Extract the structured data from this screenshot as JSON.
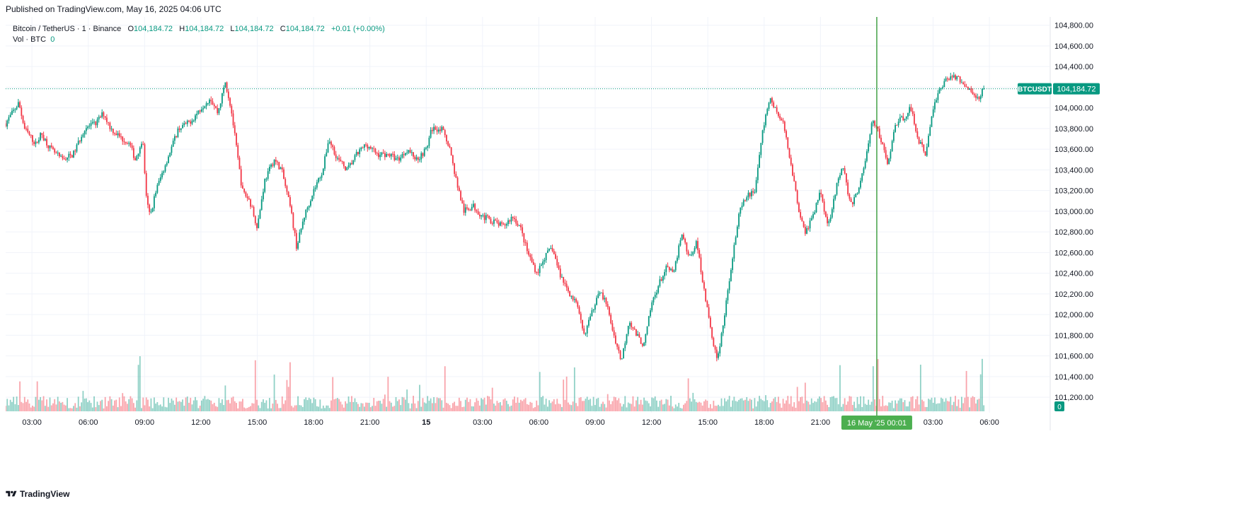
{
  "header": {
    "published": "Published on TradingView.com, May 16, 2025 04:06 UTC"
  },
  "legend": {
    "symbol": "Bitcoin / TetherUS · 1 · Binance",
    "o_label": "O",
    "o": "104,184.72",
    "h_label": "H",
    "h": "104,184.72",
    "l_label": "L",
    "l": "104,184.72",
    "c_label": "C",
    "c": "104,184.72",
    "change": "+0.01 (+0.00%)",
    "vol_label": "Vol · BTC",
    "vol_value": "0"
  },
  "price_tag": {
    "ticker": "BTCUSDT",
    "price": "104,184.72"
  },
  "volume_tag": "0",
  "crosshair_label": {
    "date": "16 May '25",
    "time": "00:01"
  },
  "footer": {
    "brand": "TradingView"
  },
  "colors": {
    "up": "#089981",
    "down": "#f23645",
    "grid": "#f0f3fa",
    "crosshair": "#22ab94",
    "crosshair_dark": "#43a047"
  },
  "chart_data": {
    "type": "candlestick",
    "symbol": "BTCUSDT",
    "interval": "1m",
    "y_axis": {
      "ticks": [
        "104,800.00",
        "104,600.00",
        "104,400.00",
        "104,200.00",
        "104,000.00",
        "103,800.00",
        "103,600.00",
        "103,400.00",
        "103,200.00",
        "103,000.00",
        "102,800.00",
        "102,600.00",
        "102,400.00",
        "102,200.00",
        "102,000.00",
        "101,800.00",
        "101,600.00",
        "101,400.00",
        "101,200.00"
      ],
      "ylim": [
        101050,
        104880
      ]
    },
    "x_axis": {
      "ticks": [
        "03:00",
        "06:00",
        "09:00",
        "12:00",
        "15:00",
        "18:00",
        "21:00",
        "15",
        "03:00",
        "06:00",
        "09:00",
        "12:00",
        "15:00",
        "18:00",
        "21:00",
        "03:00",
        "06:00"
      ],
      "tick_hours": [
        3,
        6,
        9,
        12,
        15,
        18,
        21,
        24,
        27,
        30,
        33,
        36,
        39,
        42,
        45,
        51,
        54
      ],
      "range_hours": [
        1.6,
        57.2
      ]
    },
    "last_price": 104184.72,
    "crosshair_hours": 48.0,
    "price_path": [
      [
        1.6,
        103850
      ],
      [
        2.3,
        104050
      ],
      [
        2.6,
        103800
      ],
      [
        3.2,
        103650
      ],
      [
        3.5,
        103750
      ],
      [
        4.0,
        103600
      ],
      [
        4.6,
        103500
      ],
      [
        5.2,
        103550
      ],
      [
        5.8,
        103800
      ],
      [
        6.4,
        103850
      ],
      [
        6.8,
        103950
      ],
      [
        7.2,
        103800
      ],
      [
        7.8,
        103700
      ],
      [
        8.2,
        103650
      ],
      [
        8.5,
        103500
      ],
      [
        8.9,
        103700
      ],
      [
        9.1,
        103100
      ],
      [
        9.3,
        102950
      ],
      [
        9.6,
        103200
      ],
      [
        10.2,
        103500
      ],
      [
        10.8,
        103800
      ],
      [
        11.3,
        103850
      ],
      [
        11.6,
        103900
      ],
      [
        12.0,
        104000
      ],
      [
        12.5,
        104100
      ],
      [
        12.9,
        103950
      ],
      [
        13.3,
        104250
      ],
      [
        13.6,
        104000
      ],
      [
        13.9,
        103600
      ],
      [
        14.2,
        103200
      ],
      [
        14.6,
        103100
      ],
      [
        15.0,
        102850
      ],
      [
        15.4,
        103300
      ],
      [
        15.9,
        103500
      ],
      [
        16.3,
        103400
      ],
      [
        16.8,
        103000
      ],
      [
        17.1,
        102650
      ],
      [
        17.5,
        102950
      ],
      [
        18.0,
        103200
      ],
      [
        18.5,
        103400
      ],
      [
        18.8,
        103700
      ],
      [
        19.3,
        103500
      ],
      [
        19.8,
        103400
      ],
      [
        20.3,
        103550
      ],
      [
        20.8,
        103650
      ],
      [
        21.4,
        103550
      ],
      [
        22.0,
        103550
      ],
      [
        22.5,
        103500
      ],
      [
        23.0,
        103600
      ],
      [
        23.5,
        103500
      ],
      [
        24.0,
        103600
      ],
      [
        24.3,
        103800
      ],
      [
        24.8,
        103800
      ],
      [
        25.2,
        103650
      ],
      [
        25.6,
        103300
      ],
      [
        26.0,
        103000
      ],
      [
        26.5,
        103050
      ],
      [
        27.0,
        102950
      ],
      [
        27.6,
        102900
      ],
      [
        28.1,
        102850
      ],
      [
        28.6,
        102950
      ],
      [
        29.0,
        102850
      ],
      [
        29.4,
        102600
      ],
      [
        29.9,
        102400
      ],
      [
        30.3,
        102550
      ],
      [
        30.7,
        102650
      ],
      [
        31.1,
        102400
      ],
      [
        31.5,
        102250
      ],
      [
        32.0,
        102100
      ],
      [
        32.4,
        101800
      ],
      [
        32.8,
        102000
      ],
      [
        33.2,
        102250
      ],
      [
        33.6,
        102100
      ],
      [
        34.0,
        101800
      ],
      [
        34.4,
        101550
      ],
      [
        34.8,
        101950
      ],
      [
        35.2,
        101800
      ],
      [
        35.6,
        101700
      ],
      [
        36.0,
        102100
      ],
      [
        36.4,
        102300
      ],
      [
        36.8,
        102450
      ],
      [
        37.2,
        102400
      ],
      [
        37.6,
        102800
      ],
      [
        38.0,
        102550
      ],
      [
        38.4,
        102700
      ],
      [
        38.8,
        102250
      ],
      [
        39.1,
        101900
      ],
      [
        39.5,
        101550
      ],
      [
        39.9,
        102000
      ],
      [
        40.3,
        102550
      ],
      [
        40.7,
        103000
      ],
      [
        41.1,
        103150
      ],
      [
        41.5,
        103200
      ],
      [
        41.9,
        103750
      ],
      [
        42.3,
        104100
      ],
      [
        42.7,
        103950
      ],
      [
        43.0,
        103850
      ],
      [
        43.4,
        103500
      ],
      [
        43.8,
        103050
      ],
      [
        44.2,
        102800
      ],
      [
        44.6,
        102950
      ],
      [
        45.0,
        103200
      ],
      [
        45.4,
        102850
      ],
      [
        45.8,
        103200
      ],
      [
        46.2,
        103450
      ],
      [
        46.6,
        103050
      ],
      [
        47.0,
        103200
      ],
      [
        47.4,
        103500
      ],
      [
        47.8,
        103900
      ],
      [
        48.2,
        103700
      ],
      [
        48.6,
        103450
      ],
      [
        49.0,
        103850
      ],
      [
        49.4,
        103900
      ],
      [
        49.8,
        104000
      ],
      [
        50.2,
        103700
      ],
      [
        50.6,
        103550
      ],
      [
        51.0,
        104000
      ],
      [
        51.4,
        104200
      ],
      [
        51.8,
        104300
      ],
      [
        52.2,
        104300
      ],
      [
        52.6,
        104250
      ],
      [
        53.0,
        104150
      ],
      [
        53.4,
        104100
      ],
      [
        53.7,
        104184.72
      ]
    ]
  }
}
